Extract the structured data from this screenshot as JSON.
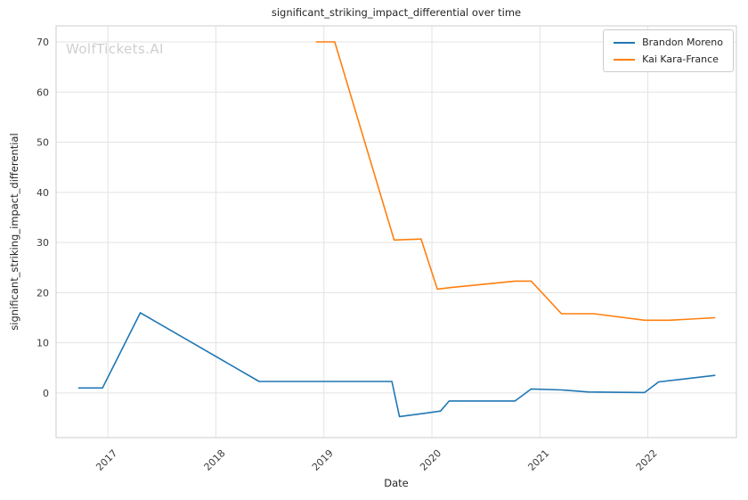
{
  "watermark": "WolfTickets.AI",
  "chart_data": {
    "type": "line",
    "title": "significant_striking_impact_differential over time",
    "xlabel": "Date",
    "ylabel": "significant_striking_impact_differential",
    "grid": true,
    "legend_position": "upper right",
    "xlim": [
      2016.52,
      2022.82
    ],
    "ylim": [
      -8.9,
      73.2
    ],
    "xticks": [
      2017,
      2018,
      2019,
      2020,
      2021,
      2022
    ],
    "yticks": [
      0,
      10,
      20,
      30,
      40,
      50,
      60,
      70
    ],
    "series": [
      {
        "name": "Brandon Moreno",
        "color": "#1f77b4",
        "x": [
          2016.73,
          2016.95,
          2017.3,
          2017.5,
          2018.4,
          2019.63,
          2019.7,
          2019.95,
          2020.08,
          2020.16,
          2020.77,
          2020.92,
          2021.2,
          2021.45,
          2021.97,
          2022.1,
          2022.62
        ],
        "y": [
          1,
          1,
          16,
          13.5,
          2.3,
          2.3,
          -4.7,
          -4.0,
          -3.6,
          -1.6,
          -1.6,
          0.8,
          0.6,
          0.2,
          0.1,
          2.2,
          3.5
        ]
      },
      {
        "name": "Kai Kara-France",
        "color": "#ff7f0e",
        "x": [
          2018.93,
          2019.1,
          2019.65,
          2019.9,
          2020.05,
          2020.17,
          2020.77,
          2020.92,
          2021.2,
          2021.5,
          2021.97,
          2022.2,
          2022.62
        ],
        "y": [
          70,
          70,
          30.5,
          30.7,
          20.7,
          21.0,
          22.3,
          22.3,
          15.8,
          15.8,
          14.5,
          14.5,
          15.0
        ]
      }
    ]
  }
}
